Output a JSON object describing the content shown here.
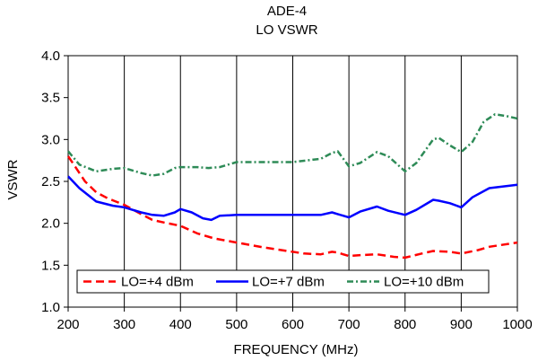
{
  "chart_data": {
    "type": "line",
    "title": "ADE-4",
    "subtitle": "LO VSWR",
    "xlabel": "FREQUENCY (MHz)",
    "ylabel": "VSWR",
    "xlim": [
      200,
      1000
    ],
    "ylim": [
      1.0,
      4.0
    ],
    "x_ticks": [
      200,
      300,
      400,
      500,
      600,
      700,
      800,
      900,
      1000
    ],
    "x_tick_labels": [
      "200",
      "300",
      "400",
      "500",
      "600",
      "700",
      "800",
      "900",
      "1000"
    ],
    "y_ticks": [
      1.0,
      1.5,
      2.0,
      2.5,
      3.0,
      3.5,
      4.0
    ],
    "y_tick_labels": [
      "1.0",
      "1.5",
      "2.0",
      "2.5",
      "3.0",
      "3.5",
      "4.0"
    ],
    "grid": "vertical",
    "legend_position": "bottom",
    "series": [
      {
        "name": "LO=+4 dBm",
        "color": "#ff0000",
        "dash": "dashed",
        "x": [
          200,
          210,
          230,
          250,
          270,
          300,
          330,
          350,
          370,
          400,
          430,
          460,
          500,
          550,
          600,
          620,
          650,
          670,
          680,
          700,
          720,
          750,
          780,
          800,
          830,
          850,
          880,
          900,
          930,
          950,
          1000
        ],
        "y": [
          2.8,
          2.7,
          2.5,
          2.37,
          2.3,
          2.22,
          2.11,
          2.04,
          2.01,
          1.97,
          1.88,
          1.82,
          1.77,
          1.71,
          1.66,
          1.64,
          1.63,
          1.66,
          1.65,
          1.61,
          1.62,
          1.63,
          1.6,
          1.59,
          1.64,
          1.67,
          1.66,
          1.64,
          1.68,
          1.72,
          1.77
        ]
      },
      {
        "name": "LO=+7 dBm",
        "color": "#0000ff",
        "dash": "solid",
        "x": [
          200,
          220,
          250,
          280,
          300,
          330,
          350,
          370,
          390,
          400,
          420,
          440,
          455,
          470,
          500,
          550,
          600,
          650,
          670,
          680,
          700,
          720,
          750,
          770,
          800,
          820,
          850,
          860,
          880,
          900,
          920,
          950,
          1000
        ],
        "y": [
          2.56,
          2.42,
          2.26,
          2.21,
          2.19,
          2.13,
          2.1,
          2.09,
          2.13,
          2.17,
          2.13,
          2.06,
          2.04,
          2.09,
          2.1,
          2.1,
          2.1,
          2.1,
          2.13,
          2.11,
          2.07,
          2.14,
          2.2,
          2.15,
          2.1,
          2.16,
          2.28,
          2.27,
          2.24,
          2.19,
          2.31,
          2.42,
          2.46
        ]
      },
      {
        "name": "LO=+10 dBm",
        "color": "#2e8b57",
        "dash": "dash-dot",
        "x": [
          200,
          220,
          250,
          280,
          300,
          330,
          350,
          370,
          390,
          400,
          430,
          450,
          470,
          500,
          550,
          600,
          650,
          670,
          680,
          700,
          720,
          750,
          770,
          800,
          820,
          850,
          860,
          880,
          900,
          920,
          940,
          960,
          980,
          1000
        ],
        "y": [
          2.86,
          2.7,
          2.62,
          2.65,
          2.66,
          2.6,
          2.57,
          2.59,
          2.66,
          2.67,
          2.67,
          2.66,
          2.67,
          2.73,
          2.73,
          2.73,
          2.77,
          2.84,
          2.86,
          2.68,
          2.72,
          2.85,
          2.8,
          2.62,
          2.72,
          3.0,
          3.02,
          2.93,
          2.85,
          2.97,
          3.21,
          3.3,
          3.28,
          3.25
        ]
      }
    ]
  }
}
